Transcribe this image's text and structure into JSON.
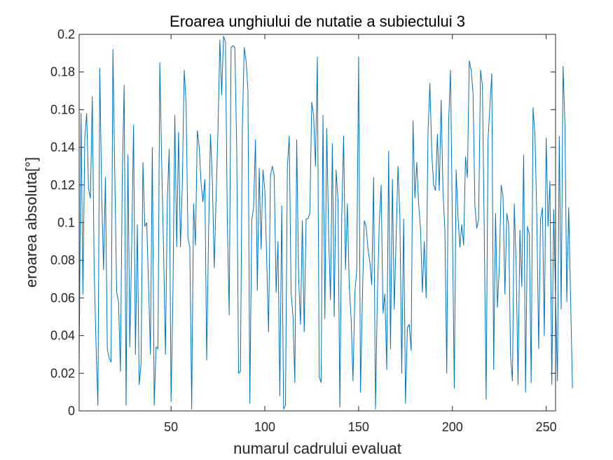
{
  "chart_data": {
    "type": "line",
    "title": "Eroarea unghiului de nutatie a subiectului 3",
    "xlabel": "numarul cadrului evaluat",
    "ylabel": "eroarea absoluta[°]",
    "xlim": [
      1,
      255
    ],
    "ylim": [
      0,
      0.2
    ],
    "xticks": [
      50,
      100,
      150,
      200,
      250
    ],
    "yticks": [
      0,
      0.02,
      0.04,
      0.06,
      0.08,
      0.1,
      0.12,
      0.14,
      0.16,
      0.18,
      0.2
    ],
    "ytick_labels": [
      "0",
      "0.02",
      "0.04",
      "0.06",
      "0.08",
      "0.1",
      "0.12",
      "0.14",
      "0.16",
      "0.18",
      "0.2"
    ],
    "grid": false,
    "series": [
      {
        "color": "#0072BD",
        "x_start": 1,
        "x_step": 1,
        "values": [
          0.025,
          0.158,
          0.062,
          0.145,
          0.158,
          0.118,
          0.113,
          0.167,
          0.075,
          0.035,
          0.003,
          0.182,
          0.115,
          0.075,
          0.124,
          0.033,
          0.028,
          0.026,
          0.192,
          0.125,
          0.063,
          0.058,
          0.021,
          0.125,
          0.173,
          0.003,
          0.136,
          0.034,
          0.087,
          0.152,
          0.03,
          0.099,
          0.014,
          0.025,
          0.132,
          0.098,
          0.1,
          0.067,
          0.03,
          0.14,
          0.003,
          0.034,
          0.033,
          0.185,
          0.132,
          0.085,
          0.03,
          0.112,
          0.139,
          0.005,
          0.062,
          0.157,
          0.087,
          0.148,
          0.087,
          0.12,
          0.181,
          0.164,
          0.092,
          0.087,
          0.001,
          0.11,
          0.088,
          0.149,
          0.14,
          0.121,
          0.111,
          0.123,
          0.027,
          0.094,
          0.147,
          0.123,
          0.076,
          0.113,
          0.148,
          0.197,
          0.168,
          0.199,
          0.196,
          0.1,
          0.051,
          0.193,
          0.194,
          0.193,
          0.14,
          0.02,
          0.021,
          0.15,
          0.193,
          0.186,
          0.17,
          0.004,
          0.101,
          0.108,
          0.144,
          0.064,
          0.129,
          0.086,
          0.128,
          0.117,
          0.08,
          0.042,
          0.125,
          0.13,
          0.125,
          0.063,
          0.09,
          0.008,
          0.109,
          0.001,
          0.003,
          0.129,
          0.146,
          0.063,
          0.05,
          0.015,
          0.144,
          0.071,
          0.046,
          0.101,
          0.042,
          0.102,
          0.102,
          0.105,
          0.164,
          0.157,
          0.13,
          0.188,
          0.018,
          0.015,
          0.157,
          0.049,
          0.15,
          0.094,
          0.059,
          0.142,
          0.05,
          0.128,
          0.112,
          0.002,
          0.103,
          0.146,
          0.075,
          0.11,
          0.066,
          0.049,
          0.016,
          0.063,
          0.075,
          0.188,
          0.01,
          0.059,
          0.101,
          0.098,
          0.086,
          0.079,
          0.067,
          0.124,
          0.001,
          0.061,
          0.099,
          0.12,
          0.052,
          0.062,
          0.022,
          0.138,
          0.033,
          0.123,
          0.054,
          0.092,
          0.13,
          0.103,
          0.02,
          0.102,
          0.004,
          0.044,
          0.046,
          0.032,
          0.154,
          0.113,
          0.132,
          0.11,
          0.097,
          0.063,
          0.09,
          0.06,
          0.148,
          0.174,
          0.137,
          0.12,
          0.117,
          0.147,
          0.117,
          0.165,
          0.116,
          0.096,
          0.02,
          0.154,
          0.181,
          0.098,
          0.012,
          0.128,
          0.103,
          0.087,
          0.099,
          0.088,
          0.135,
          0.124,
          0.186,
          0.181,
          0.169,
          0.109,
          0.097,
          0.102,
          0.181,
          0.173,
          0.094,
          0.006,
          0.144,
          0.162,
          0.179,
          0.022,
          0.105,
          0.055,
          0.076,
          0.12,
          0.114,
          0.062,
          0.105,
          0.099,
          0.029,
          0.016,
          0.11,
          0.077,
          0.014,
          0.096,
          0.066,
          0.136,
          0.01,
          0.098,
          0.094,
          0.015,
          0.161,
          0.147,
          0.104,
          0.033,
          0.102,
          0.108,
          0.04,
          0.145,
          0.098,
          0.122,
          0.014,
          0.107,
          0.061,
          0.016,
          0.146,
          0.054,
          0.183,
          0.152,
          0.058,
          0.108,
          0.061,
          0.012
        ]
      }
    ]
  }
}
